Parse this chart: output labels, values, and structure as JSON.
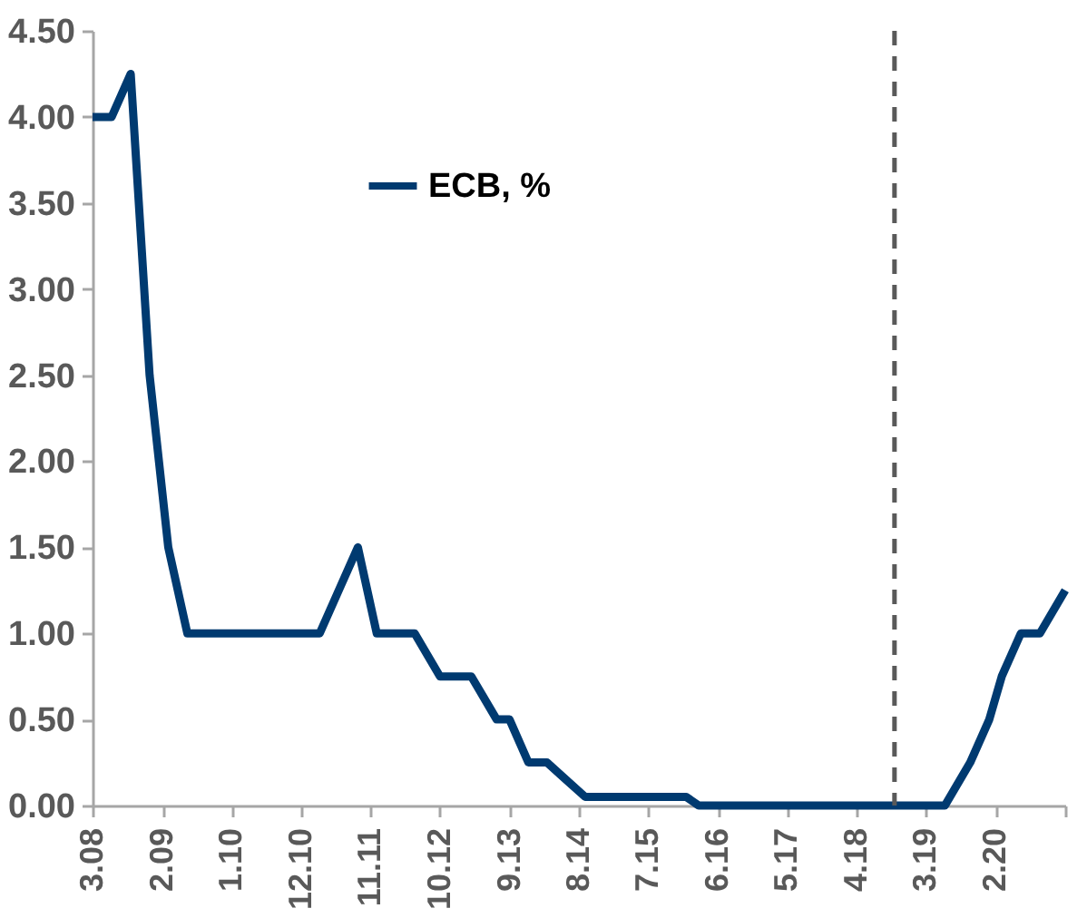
{
  "chart_data": {
    "type": "line",
    "x": [
      "2008-03",
      "2008-06",
      "2008-09",
      "2008-12",
      "2009-03",
      "2009-06",
      "2011-03",
      "2011-06",
      "2011-09",
      "2011-12",
      "2012-06",
      "2012-10",
      "2013-03",
      "2013-07",
      "2013-09",
      "2013-12",
      "2014-03",
      "2014-06",
      "2014-09",
      "2016-01",
      "2016-03",
      "2019-06",
      "2019-10",
      "2020-01",
      "2020-03",
      "2020-06",
      "2020-09",
      "2021-01"
    ],
    "series": [
      {
        "name": "ECB, %",
        "color": "#003a70",
        "values": [
          4.0,
          4.0,
          4.25,
          2.5,
          1.5,
          1.0,
          1.0,
          1.25,
          1.5,
          1.0,
          1.0,
          0.75,
          0.75,
          0.5,
          0.5,
          0.25,
          0.25,
          0.15,
          0.05,
          0.05,
          0.0,
          0.0,
          0.25,
          0.5,
          0.75,
          1.0,
          1.0,
          1.25
        ]
      }
    ],
    "xlim": [
      "2008-03",
      "2021-01"
    ],
    "xticks": [
      {
        "value": "2008-03",
        "label": "3.08"
      },
      {
        "value": "2009-02",
        "label": "2.09"
      },
      {
        "value": "2010-01",
        "label": "1.10"
      },
      {
        "value": "2010-12",
        "label": "12.10"
      },
      {
        "value": "2011-11",
        "label": "11.11"
      },
      {
        "value": "2012-10",
        "label": "10.12"
      },
      {
        "value": "2013-09",
        "label": "9.13"
      },
      {
        "value": "2014-08",
        "label": "8.14"
      },
      {
        "value": "2015-07",
        "label": "7.15"
      },
      {
        "value": "2016-06",
        "label": "6.16"
      },
      {
        "value": "2017-05",
        "label": "5.17"
      },
      {
        "value": "2018-04",
        "label": "4.18"
      },
      {
        "value": "2019-03",
        "label": "3.19"
      },
      {
        "value": "2020-02",
        "label": "2.20"
      },
      {
        "value": "2021-01",
        "label": null
      }
    ],
    "ylim": [
      0,
      4.5
    ],
    "yticks": [
      {
        "value": 0,
        "label": "0.00"
      },
      {
        "value": 0.5,
        "label": "0.50"
      },
      {
        "value": 1,
        "label": "1.00"
      },
      {
        "value": 1.5,
        "label": "1.50"
      },
      {
        "value": 2,
        "label": "2.00"
      },
      {
        "value": 2.5,
        "label": "2.50"
      },
      {
        "value": 3,
        "label": "3.00"
      },
      {
        "value": 3.5,
        "label": "3.50"
      },
      {
        "value": 4,
        "label": "4.00"
      },
      {
        "value": 4.5,
        "label": "4.50"
      }
    ],
    "ref_lines": [
      {
        "axis": "x",
        "value": "2018-10",
        "color": "#595959",
        "line_style": "dashed"
      }
    ],
    "legend": "top",
    "grid": false
  }
}
